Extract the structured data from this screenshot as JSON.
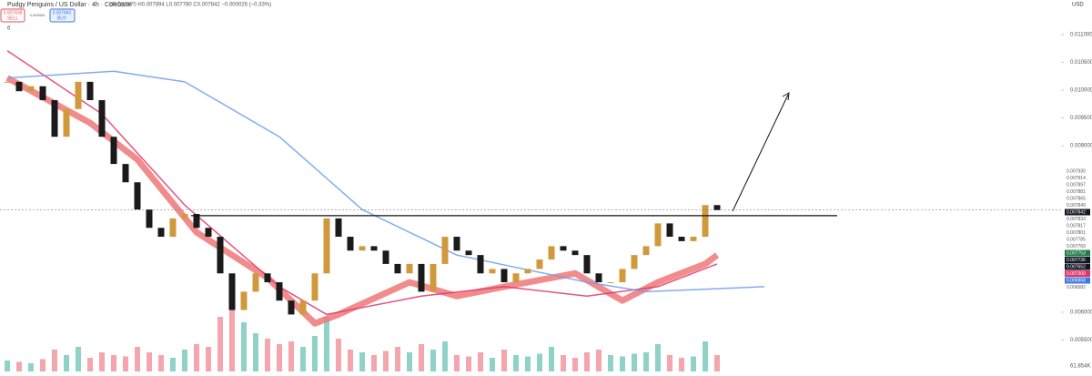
{
  "header": {
    "title": "Pudgy Penguins / US Dollar · 4h · Coinbase",
    "ohlc": "O0.007870 H0.007894 L0.007780 C0.007842 −0.000026 (−0.33%)",
    "sell_price": "0.007838",
    "sell": "SELL",
    "spread": "0.000004",
    "buy_price": "0.007842",
    "buy": "BUY",
    "indicators": "6",
    "currency": "USD"
  },
  "chart_data": {
    "type": "candlestick",
    "ylim": [
      0.004934,
      0.011623
    ],
    "yticks": [
      {
        "value": 0.011,
        "label": "0.011000"
      },
      {
        "value": 0.0105,
        "label": "0.010500"
      },
      {
        "value": 0.01,
        "label": "0.010000"
      },
      {
        "value": 0.0095,
        "label": "0.009500"
      },
      {
        "value": 0.009,
        "label": "0.009000"
      },
      {
        "value": 0.006,
        "label": "0.006000"
      },
      {
        "value": 0.0055,
        "label": "0.005500"
      }
    ],
    "closes": [
      0.01015,
      0.00998,
      0.01007,
      0.00982,
      0.00916,
      0.00966,
      0.01015,
      0.00982,
      0.00916,
      0.00867,
      0.00834,
      0.00785,
      0.00752,
      0.00736,
      0.00769,
      0.00777,
      0.00752,
      0.00736,
      0.0067,
      0.00604,
      0.00637,
      0.0067,
      0.00654,
      0.00621,
      0.00596,
      0.00621,
      0.0067,
      0.00769,
      0.00736,
      0.00711,
      0.00719,
      0.00711,
      0.00687,
      0.0067,
      0.00687,
      0.00637,
      0.00687,
      0.00736,
      0.00711,
      0.00703,
      0.0067,
      0.00678,
      0.00654,
      0.0067,
      0.00678,
      0.00695,
      0.00719,
      0.00711,
      0.00703,
      0.0067,
      0.00654,
      0.00654,
      0.00678,
      0.00703,
      0.00719,
      0.0076,
      0.00736,
      0.00728,
      0.00736,
      0.00793,
      0.00784
    ],
    "volume": {
      "label": "61.854K",
      "vlim": [
        0,
        300
      ],
      "values": [
        40,
        35,
        30,
        45,
        80,
        60,
        90,
        50,
        70,
        60,
        55,
        90,
        70,
        60,
        50,
        80,
        100,
        90,
        200,
        290,
        180,
        140,
        120,
        100,
        110,
        90,
        130,
        200,
        120,
        80,
        70,
        60,
        75,
        90,
        70,
        100,
        80,
        110,
        60,
        55,
        70,
        50,
        80,
        60,
        55,
        65,
        90,
        60,
        50,
        70,
        80,
        60,
        55,
        65,
        70,
        100,
        60,
        50,
        55,
        110,
        60
      ]
    },
    "series": [
      {
        "name": "EMA",
        "color": "#f07878",
        "width": 7,
        "x": [
          0,
          7,
          11,
          16,
          22,
          26,
          28,
          34,
          38,
          42,
          48,
          52,
          55,
          59,
          60
        ],
        "values": [
          0.01022,
          0.00941,
          0.00875,
          0.00744,
          0.00662,
          0.0058,
          0.00596,
          0.00654,
          0.00629,
          0.00646,
          0.0067,
          0.00621,
          0.00654,
          0.00687,
          0.00703
        ]
      },
      {
        "name": "MA 50",
        "color": "#e0356b",
        "width": 1.5,
        "x": [
          0,
          8,
          15,
          23,
          27,
          35,
          42,
          49,
          55,
          60
        ],
        "values": [
          0.01071,
          0.00957,
          0.00793,
          0.00646,
          0.00596,
          0.00629,
          0.00646,
          0.00629,
          0.00646,
          0.00687
        ]
      },
      {
        "name": "MA 200",
        "color": "#6d9eeb",
        "width": 1.5,
        "x": [
          0,
          9,
          15,
          23,
          30,
          38,
          49,
          54,
          64
        ],
        "values": [
          0.01022,
          0.01034,
          0.01015,
          0.00916,
          0.00785,
          0.00703,
          0.00654,
          0.00637,
          0.00646
        ]
      }
    ],
    "level": 0.00774,
    "current": 0.007842,
    "axis_labels": [
      {
        "label": "0.007930",
        "color": "#fff"
      },
      {
        "label": "0.007914",
        "color": "#fff"
      },
      {
        "label": "0.007897",
        "color": "#fff"
      },
      {
        "label": "0.007881",
        "color": "#fff"
      },
      {
        "label": "0.007865",
        "color": "#fff"
      },
      {
        "label": "0.007849",
        "color": "#fff"
      },
      {
        "label": "0.007842",
        "color": "#131722"
      },
      {
        "label": "0.007833",
        "color": "#fff"
      },
      {
        "label": "0.007817",
        "color": "#fff"
      },
      {
        "label": "0.007801",
        "color": "#fff"
      },
      {
        "label": "0.007785",
        "color": "#fff"
      },
      {
        "label": "0.007769",
        "color": "#fff"
      },
      {
        "label": "0.007753",
        "color": "#1e7b4a"
      },
      {
        "label": "0.007736",
        "color": "#131722"
      },
      {
        "label": "0.007652",
        "color": "#131722"
      },
      {
        "label": "0.007300",
        "color": "#e0356b"
      },
      {
        "label": "0.006968",
        "color": "#3d78e0"
      },
      {
        "label": "0.006582",
        "color": "#fff"
      }
    ]
  }
}
